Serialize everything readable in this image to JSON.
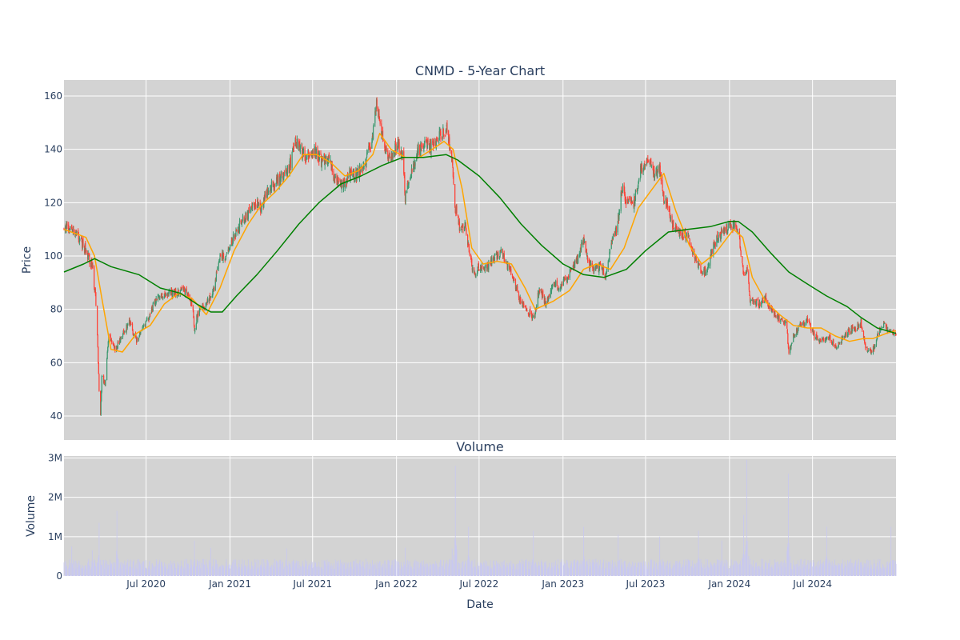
{
  "chart_data": [
    {
      "type": "candlestick",
      "title": "CNMD - 5-Year Chart",
      "xlabel": "",
      "ylabel": "Price",
      "ylim": [
        31,
        166
      ],
      "yticks": [
        40,
        60,
        80,
        100,
        120,
        140,
        160
      ],
      "xlim": [
        "2020-01-03",
        "2024-12-31"
      ],
      "grid": true,
      "colors": {
        "increasing": "#3d9970",
        "decreasing": "#ff4136",
        "ma_fast": "#ffa500",
        "ma_slow": "#008000",
        "plot_bg": "#d3d3d3",
        "grid": "#ffffff"
      },
      "close_anchors": [
        [
          "2020-01-03",
          111
        ],
        [
          "2020-01-20",
          110
        ],
        [
          "2020-02-05",
          107
        ],
        [
          "2020-02-20",
          102
        ],
        [
          "2020-03-05",
          96
        ],
        [
          "2020-03-12",
          85
        ],
        [
          "2020-03-16",
          70
        ],
        [
          "2020-03-20",
          50
        ],
        [
          "2020-03-23",
          40
        ],
        [
          "2020-03-26",
          55
        ],
        [
          "2020-04-02",
          52
        ],
        [
          "2020-04-10",
          70
        ],
        [
          "2020-04-25",
          65
        ],
        [
          "2020-05-10",
          70
        ],
        [
          "2020-05-25",
          75
        ],
        [
          "2020-06-10",
          68
        ],
        [
          "2020-06-25",
          73
        ],
        [
          "2020-07-10",
          78
        ],
        [
          "2020-07-25",
          85
        ],
        [
          "2020-08-15",
          86
        ],
        [
          "2020-09-05",
          86
        ],
        [
          "2020-09-25",
          87
        ],
        [
          "2020-10-10",
          82
        ],
        [
          "2020-10-15",
          73
        ],
        [
          "2020-10-25",
          80
        ],
        [
          "2020-11-10",
          82
        ],
        [
          "2020-11-25",
          86
        ],
        [
          "2020-12-10",
          100
        ],
        [
          "2020-12-25",
          100
        ],
        [
          "2021-01-15",
          110
        ],
        [
          "2021-02-05",
          115
        ],
        [
          "2021-02-25",
          120
        ],
        [
          "2021-03-10",
          118
        ],
        [
          "2021-03-25",
          125
        ],
        [
          "2021-04-15",
          128
        ],
        [
          "2021-05-10",
          133
        ],
        [
          "2021-05-25",
          142
        ],
        [
          "2021-06-05",
          140
        ],
        [
          "2021-06-20",
          137
        ],
        [
          "2021-07-05",
          140
        ],
        [
          "2021-07-20",
          136
        ],
        [
          "2021-08-05",
          137
        ],
        [
          "2021-08-20",
          128
        ],
        [
          "2021-09-05",
          127
        ],
        [
          "2021-09-20",
          130
        ],
        [
          "2021-10-10",
          131
        ],
        [
          "2021-10-25",
          135
        ],
        [
          "2021-11-10",
          145
        ],
        [
          "2021-11-18",
          156
        ],
        [
          "2021-11-25",
          150
        ],
        [
          "2021-12-05",
          140
        ],
        [
          "2021-12-20",
          137
        ],
        [
          "2022-01-05",
          142
        ],
        [
          "2022-01-15",
          137
        ],
        [
          "2022-01-20",
          122
        ],
        [
          "2022-02-01",
          132
        ],
        [
          "2022-02-20",
          140
        ],
        [
          "2022-03-05",
          143
        ],
        [
          "2022-03-20",
          140
        ],
        [
          "2022-04-05",
          145
        ],
        [
          "2022-04-20",
          148
        ],
        [
          "2022-05-03",
          135
        ],
        [
          "2022-05-10",
          118
        ],
        [
          "2022-05-20",
          110
        ],
        [
          "2022-06-01",
          112
        ],
        [
          "2022-06-10",
          100
        ],
        [
          "2022-06-20",
          93
        ],
        [
          "2022-07-01",
          96
        ],
        [
          "2022-07-20",
          96
        ],
        [
          "2022-08-05",
          100
        ],
        [
          "2022-08-20",
          101
        ],
        [
          "2022-09-05",
          95
        ],
        [
          "2022-09-20",
          88
        ],
        [
          "2022-10-01",
          82
        ],
        [
          "2022-10-15",
          80
        ],
        [
          "2022-10-30",
          76
        ],
        [
          "2022-11-10",
          88
        ],
        [
          "2022-11-25",
          82
        ],
        [
          "2022-12-10",
          90
        ],
        [
          "2022-12-25",
          88
        ],
        [
          "2023-01-10",
          92
        ],
        [
          "2023-01-25",
          96
        ],
        [
          "2023-02-05",
          100
        ],
        [
          "2023-02-15",
          107
        ],
        [
          "2023-02-25",
          97
        ],
        [
          "2023-03-10",
          95
        ],
        [
          "2023-03-25",
          96
        ],
        [
          "2023-04-05",
          93
        ],
        [
          "2023-04-20",
          106
        ],
        [
          "2023-05-01",
          112
        ],
        [
          "2023-05-10",
          126
        ],
        [
          "2023-05-20",
          120
        ],
        [
          "2023-06-05",
          120
        ],
        [
          "2023-06-20",
          132
        ],
        [
          "2023-07-05",
          136
        ],
        [
          "2023-07-20",
          131
        ],
        [
          "2023-08-01",
          134
        ],
        [
          "2023-08-08",
          122
        ],
        [
          "2023-08-15",
          120
        ],
        [
          "2023-08-30",
          112
        ],
        [
          "2023-09-15",
          108
        ],
        [
          "2023-09-30",
          108
        ],
        [
          "2023-10-15",
          100
        ],
        [
          "2023-10-30",
          95
        ],
        [
          "2023-11-10",
          94
        ],
        [
          "2023-11-25",
          103
        ],
        [
          "2023-12-10",
          108
        ],
        [
          "2023-12-25",
          110
        ],
        [
          "2024-01-10",
          111
        ],
        [
          "2024-01-20",
          110
        ],
        [
          "2024-02-01",
          93
        ],
        [
          "2024-02-10",
          95
        ],
        [
          "2024-02-15",
          83
        ],
        [
          "2024-03-05",
          82
        ],
        [
          "2024-03-20",
          84
        ],
        [
          "2024-04-01",
          80
        ],
        [
          "2024-04-20",
          76
        ],
        [
          "2024-05-05",
          74
        ],
        [
          "2024-05-10",
          64
        ],
        [
          "2024-05-20",
          70
        ],
        [
          "2024-06-05",
          74
        ],
        [
          "2024-06-20",
          76
        ],
        [
          "2024-07-05",
          70
        ],
        [
          "2024-07-20",
          68
        ],
        [
          "2024-08-05",
          70
        ],
        [
          "2024-08-20",
          66
        ],
        [
          "2024-09-05",
          69
        ],
        [
          "2024-09-20",
          72
        ],
        [
          "2024-10-05",
          73
        ],
        [
          "2024-10-15",
          75
        ],
        [
          "2024-10-25",
          66
        ],
        [
          "2024-11-05",
          64
        ],
        [
          "2024-11-15",
          66
        ],
        [
          "2024-11-25",
          73
        ],
        [
          "2024-12-05",
          74
        ],
        [
          "2024-12-15",
          72
        ],
        [
          "2024-12-31",
          71
        ]
      ],
      "series": [
        {
          "name": "",
          "type": "line",
          "color": "#ffa500",
          "x": [
            "2020-01-03",
            "2020-02-20",
            "2020-03-10",
            "2020-03-25",
            "2020-04-15",
            "2020-05-10",
            "2020-06-10",
            "2020-07-10",
            "2020-08-10",
            "2020-09-10",
            "2020-10-10",
            "2020-11-10",
            "2020-12-10",
            "2021-01-10",
            "2021-02-10",
            "2021-03-10",
            "2021-04-10",
            "2021-05-10",
            "2021-06-10",
            "2021-07-10",
            "2021-08-10",
            "2021-09-10",
            "2021-10-10",
            "2021-11-10",
            "2021-11-25",
            "2021-12-20",
            "2022-01-20",
            "2022-02-20",
            "2022-03-20",
            "2022-04-15",
            "2022-05-05",
            "2022-05-25",
            "2022-06-15",
            "2022-07-10",
            "2022-08-10",
            "2022-09-10",
            "2022-10-10",
            "2022-11-01",
            "2022-12-10",
            "2023-01-15",
            "2023-02-15",
            "2023-03-15",
            "2023-04-15",
            "2023-05-15",
            "2023-06-15",
            "2023-07-15",
            "2023-08-10",
            "2023-09-05",
            "2023-10-05",
            "2023-11-01",
            "2023-12-01",
            "2024-01-10",
            "2024-01-30",
            "2024-02-20",
            "2024-03-20",
            "2024-04-20",
            "2024-05-20",
            "2024-06-20",
            "2024-07-20",
            "2024-08-20",
            "2024-09-20",
            "2024-10-20",
            "2024-11-10",
            "2024-12-10",
            "2024-12-31"
          ],
          "y": [
            110,
            107,
            100,
            85,
            65,
            64,
            71,
            74,
            82,
            86,
            84,
            78,
            88,
            102,
            112,
            119,
            124,
            130,
            138,
            138,
            135,
            130,
            132,
            138,
            146,
            140,
            137,
            137,
            140,
            143,
            140,
            125,
            103,
            97,
            98,
            97,
            88,
            80,
            83,
            87,
            95,
            97,
            95,
            103,
            118,
            125,
            131,
            117,
            104,
            97,
            101,
            110,
            107,
            92,
            83,
            78,
            74,
            73,
            73,
            70,
            68,
            69,
            69,
            71,
            72
          ]
        },
        {
          "name": "",
          "type": "line",
          "color": "#008000",
          "x": [
            "2020-01-03",
            "2020-02-15",
            "2020-03-10",
            "2020-04-15",
            "2020-06-15",
            "2020-08-01",
            "2020-09-15",
            "2020-10-20",
            "2020-11-20",
            "2020-12-15",
            "2021-01-15",
            "2021-03-01",
            "2021-04-15",
            "2021-06-01",
            "2021-07-15",
            "2021-09-01",
            "2021-10-15",
            "2021-12-01",
            "2022-01-15",
            "2022-03-01",
            "2022-04-20",
            "2022-05-15",
            "2022-07-01",
            "2022-08-15",
            "2022-10-01",
            "2022-11-15",
            "2023-01-01",
            "2023-02-15",
            "2023-04-01",
            "2023-05-20",
            "2023-07-01",
            "2023-08-20",
            "2023-10-01",
            "2023-11-20",
            "2024-01-01",
            "2024-01-20",
            "2024-02-20",
            "2024-04-01",
            "2024-05-10",
            "2024-06-15",
            "2024-08-01",
            "2024-09-15",
            "2024-10-15",
            "2024-11-20",
            "2024-12-31"
          ],
          "y": [
            94,
            97,
            99,
            96,
            93,
            88,
            86,
            82,
            79,
            79,
            85,
            93,
            102,
            112,
            120,
            127,
            130,
            134,
            137,
            137,
            138,
            136,
            130,
            122,
            112,
            104,
            97,
            93,
            92,
            95,
            102,
            109,
            110,
            111,
            113,
            113,
            109,
            101,
            94,
            90,
            85,
            81,
            77,
            73,
            71
          ]
        }
      ]
    },
    {
      "type": "bar",
      "title": "Volume",
      "xlabel": "Date",
      "ylabel": "Volume",
      "ylim": [
        0,
        3050000
      ],
      "yticks": [
        0,
        1000000,
        2000000,
        3000000
      ],
      "ytick_labels": [
        "0",
        "1M",
        "2M",
        "3M"
      ],
      "xticks": [
        "2020-07-01",
        "2021-01-01",
        "2021-07-01",
        "2022-01-01",
        "2022-07-01",
        "2023-01-01",
        "2023-07-01",
        "2024-01-01",
        "2024-07-01"
      ],
      "xtick_labels": [
        "Jul 2020",
        "Jan 2021",
        "Jul 2021",
        "Jan 2022",
        "Jul 2022",
        "Jan 2023",
        "Jul 2023",
        "Jan 2024",
        "Jul 2024"
      ],
      "xlim": [
        "2020-01-03",
        "2024-12-31"
      ],
      "grid": true,
      "colors": {
        "bar": "#c8c8f0",
        "plot_bg": "#d3d3d3",
        "grid": "#ffffff"
      },
      "baseline_volume": 300000,
      "volume_spikes": [
        [
          "2020-01-20",
          750000
        ],
        [
          "2020-03-05",
          650000
        ],
        [
          "2020-03-20",
          1350000
        ],
        [
          "2020-04-28",
          1650000
        ],
        [
          "2020-10-15",
          900000
        ],
        [
          "2020-11-20",
          720000
        ],
        [
          "2021-05-05",
          700000
        ],
        [
          "2022-01-20",
          720000
        ],
        [
          "2022-05-03",
          700000
        ],
        [
          "2022-05-10",
          2800000
        ],
        [
          "2022-06-08",
          1250000
        ],
        [
          "2022-10-28",
          1150000
        ],
        [
          "2023-02-15",
          1250000
        ],
        [
          "2023-05-02",
          1050000
        ],
        [
          "2023-08-01",
          1000000
        ],
        [
          "2023-10-25",
          1150000
        ],
        [
          "2023-12-15",
          900000
        ],
        [
          "2024-02-01",
          1550000
        ],
        [
          "2024-02-08",
          2950000
        ],
        [
          "2024-05-09",
          2600000
        ],
        [
          "2024-08-01",
          1250000
        ],
        [
          "2024-12-20",
          1250000
        ]
      ]
    }
  ]
}
